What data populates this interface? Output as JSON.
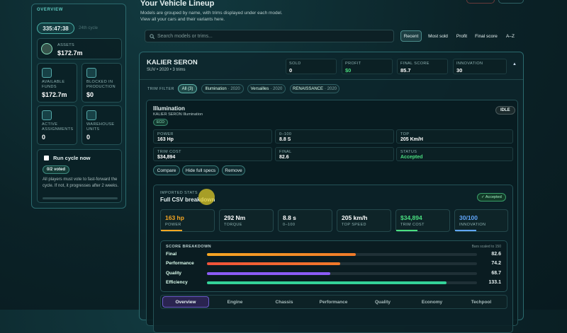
{
  "sidebar": {
    "heading": "OVERVIEW",
    "timer": "335:47:38",
    "cycle": "24th cycle",
    "assets": {
      "label": "ASSETS",
      "value": "$172.7m"
    },
    "stats": [
      {
        "label": "AVAILABLE FUNDS",
        "value": "$172.7m"
      },
      {
        "label": "BLOCKED IN PRODUCTION",
        "value": "$0"
      },
      {
        "label": "ACTIVE ASSIGNMENTS",
        "value": "0"
      },
      {
        "label": "WAREHOUSE UNITS",
        "value": "0"
      }
    ],
    "run_cycle": {
      "button": "Run cycle now",
      "votes": "0/2 voted",
      "note": "All players must vote to fast-forward the cycle. If not, it progresses after 2 weeks."
    }
  },
  "header": {
    "title": "Your Vehicle Lineup",
    "subtitle_lines": [
      "Models are grouped by name, with trims displayed under each model.",
      "View all your cars and their variants here."
    ]
  },
  "search_placeholder": "Search models or trims...",
  "sort_options": [
    "Recent",
    "Most sold",
    "Profit",
    "Final score",
    "A–Z"
  ],
  "model": {
    "name": "KALIER SERON",
    "meta": "SUV • 2020 • 3 trims",
    "stats": [
      {
        "label": "SOLD",
        "value": "0"
      },
      {
        "label": "PROFIT",
        "value": "$0"
      },
      {
        "label": "FINAL SCORE",
        "value": "85.7"
      },
      {
        "label": "INNOVATION",
        "value": "30"
      }
    ],
    "trim_filter_label": "TRIM FILTER",
    "trim_chips": [
      {
        "name": "All (3)"
      },
      {
        "name": "Illumination",
        "year": "· 2020"
      },
      {
        "name": "Versailles",
        "year": "· 2020"
      },
      {
        "name": "RENAISSANCE",
        "year": "· 2020"
      }
    ],
    "trim": {
      "name": "Illumination",
      "full_name": "KALIER SERON Illumination",
      "tag": "ECO",
      "state": "IDLE",
      "specs": [
        {
          "label": "POWER",
          "value": "163 Hp"
        },
        {
          "label": "0–100",
          "value": "8.8 S"
        },
        {
          "label": "TOP",
          "value": "205 Km/H"
        },
        {
          "label": "TRIM COST",
          "value": "$34,894"
        },
        {
          "label": "FINAL",
          "value": "82.6"
        },
        {
          "label": "STATUS",
          "value": "Accepted"
        }
      ],
      "actions": [
        "Compare",
        "Hide full specs",
        "Remove"
      ],
      "imported": {
        "label": "IMPORTED STATS",
        "title": "Full CSV breakdown",
        "status": "✓ Accepted",
        "metrics": [
          {
            "value": "163 hp",
            "label": "POWER"
          },
          {
            "value": "292 Nm",
            "label": "TORQUE"
          },
          {
            "value": "8.8 s",
            "label": "0–100"
          },
          {
            "value": "205 km/h",
            "label": "TOP SPEED"
          },
          {
            "value": "$34,894",
            "label": "TRIM COST"
          },
          {
            "value": "30/100",
            "label": "INNOVATION"
          }
        ],
        "score_breakdown": {
          "title": "SCORE BREAKDOWN",
          "scale": {
            "value": 150,
            "label": "Bars scaled to 150"
          },
          "rows": [
            {
              "label": "Final",
              "value": 82.6
            },
            {
              "label": "Performance",
              "value": 74.2
            },
            {
              "label": "Quality",
              "value": 68.7
            },
            {
              "label": "Efficiency",
              "value": 133.1
            }
          ]
        },
        "tabs": [
          "Overview",
          "Engine",
          "Chassis",
          "Performance",
          "Quality",
          "Economy",
          "Techpool"
        ]
      }
    }
  }
}
